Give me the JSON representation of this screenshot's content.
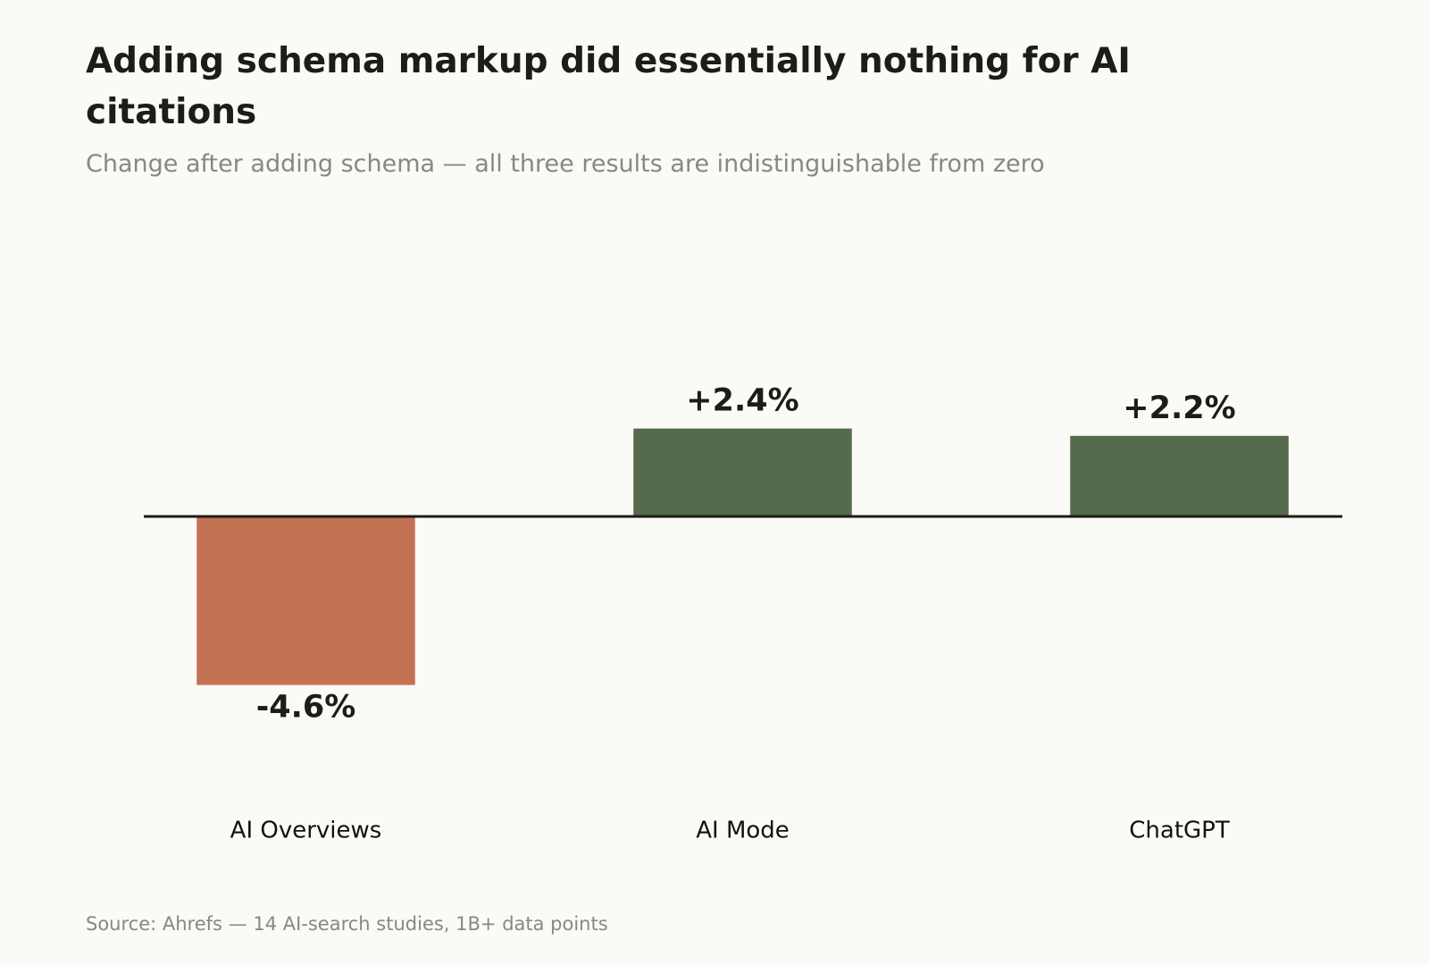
{
  "chart_data": {
    "type": "bar",
    "title": "Adding schema markup did essentially nothing for AI citations",
    "subtitle": "Change after adding schema — all three results are indistinguishable from zero",
    "source": "Source: Ahrefs — 14 AI-search studies, 1B+ data points",
    "categories": [
      "AI Overviews",
      "AI Mode",
      "ChatGPT"
    ],
    "values": [
      -4.6,
      2.4,
      2.2
    ],
    "value_labels": [
      "-4.6%",
      "+2.4%",
      "+2.2%"
    ],
    "colors": [
      "#c47254",
      "#566b4c",
      "#566b4c"
    ],
    "ylim": [
      -8,
      6
    ]
  }
}
